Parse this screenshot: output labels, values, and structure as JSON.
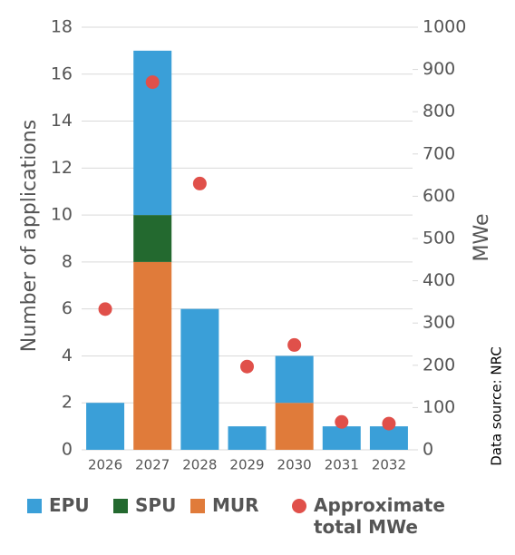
{
  "chart_data": {
    "type": "bar",
    "stacked": true,
    "categories": [
      "2026",
      "2027",
      "2028",
      "2029",
      "2030",
      "2031",
      "2032"
    ],
    "series": [
      {
        "name": "MUR",
        "color": "#e07b3a",
        "values": [
          0,
          8,
          0,
          0,
          2,
          0,
          0
        ]
      },
      {
        "name": "SPU",
        "color": "#23692f",
        "values": [
          0,
          2,
          0,
          0,
          0,
          0,
          0
        ]
      },
      {
        "name": "EPU",
        "color": "#3a9fd8",
        "values": [
          2,
          7,
          6,
          1,
          2,
          1,
          1
        ]
      },
      {
        "name": "Approximate total MWe",
        "color": "#e0504a",
        "axis": "y2",
        "values": [
          333,
          870,
          630,
          197,
          248,
          66,
          62
        ]
      }
    ],
    "legend_order": [
      "EPU",
      "SPU",
      "MUR",
      "Approximate total MWe"
    ],
    "y_label": "Number of applications",
    "y2_label": "MWe",
    "annotation": "Data source: NRC",
    "ylim": [
      0,
      18
    ],
    "yticks": [
      0,
      2,
      4,
      6,
      8,
      10,
      12,
      14,
      16,
      18
    ],
    "y2lim": [
      0,
      1000
    ],
    "y2ticks": [
      0,
      100,
      200,
      300,
      400,
      500,
      600,
      700,
      800,
      900,
      1000
    ],
    "grid": true,
    "legend": "bottom"
  }
}
